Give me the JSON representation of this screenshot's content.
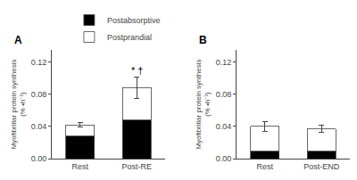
{
  "chart_data": [
    {
      "type": "bar",
      "title": "A",
      "stacked": true,
      "grid": false,
      "legend": "upper right",
      "categories": [
        "Rest",
        "Post-RE"
      ],
      "series": [
        {
          "name": "Postabsorptive",
          "color": "#000000",
          "values": [
            0.028,
            0.048
          ]
        },
        {
          "name": "Postprandial",
          "color": "#ffffff",
          "values": [
            0.014,
            0.04
          ]
        }
      ],
      "errors": [
        0.003,
        0.013
      ],
      "annotations": [
        {
          "text": "* †",
          "category": "Post-RE"
        }
      ],
      "ylabel": "Myofibrillar protein synthesis\n(% •h⁻¹)",
      "ylim": [
        0,
        0.135
      ],
      "yticks": [
        {
          "value": 0,
          "label": "0.00"
        },
        0.04,
        0.08,
        0.12
      ]
    },
    {
      "type": "bar",
      "title": "B",
      "stacked": true,
      "grid": false,
      "categories": [
        "Rest",
        "Post-END"
      ],
      "series": [
        {
          "name": "Postabsorptive",
          "color": "#000000",
          "values": [
            0.009,
            0.009
          ]
        },
        {
          "name": "Postprandial",
          "color": "#ffffff",
          "values": [
            0.031,
            0.028
          ]
        }
      ],
      "errors": [
        0.006,
        0.004
      ],
      "ylabel": "Myofibrillar protein synthesis\n(% •h⁻¹)",
      "ylim": [
        0,
        0.135
      ],
      "yticks": [
        {
          "value": 0,
          "label": "0.00"
        },
        0.04,
        0.08,
        0.12
      ]
    }
  ]
}
